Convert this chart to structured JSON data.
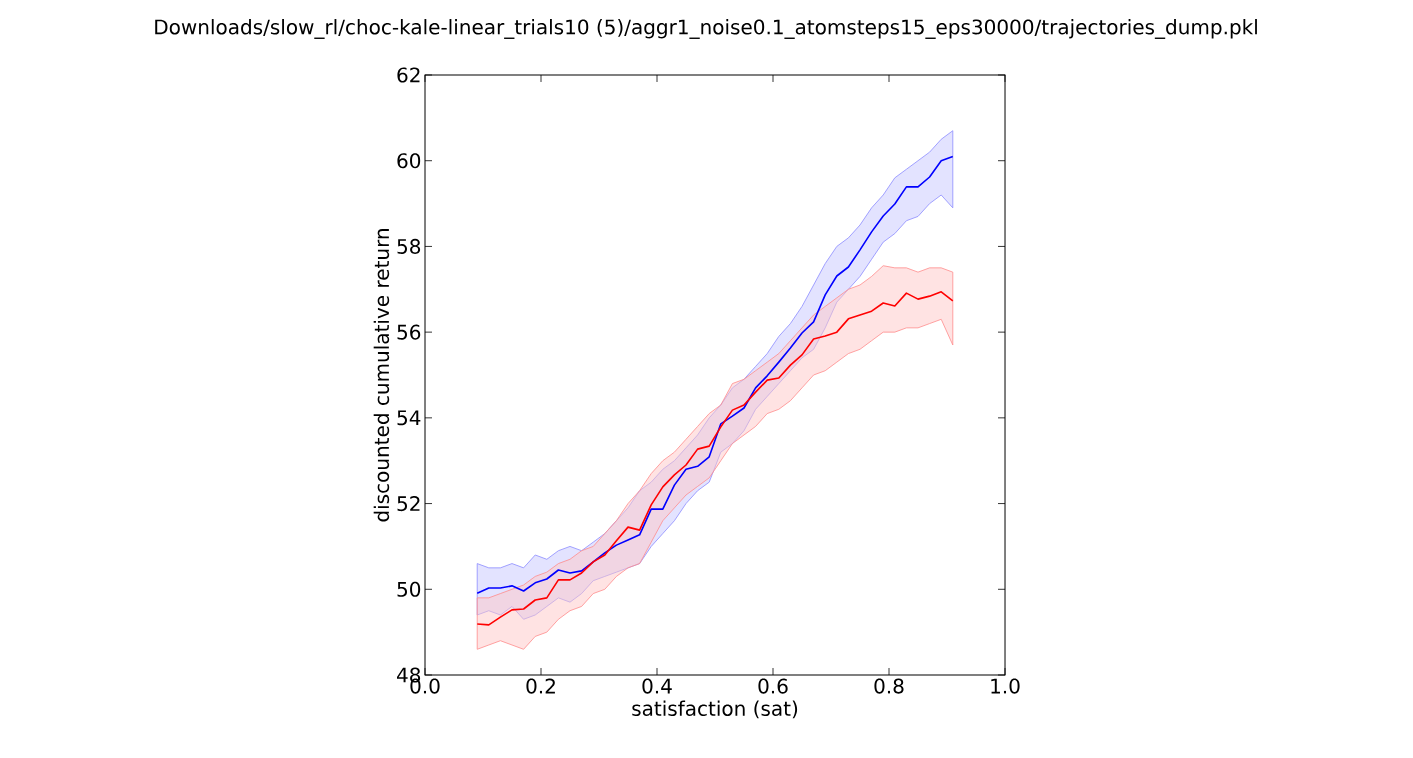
{
  "chart_data": {
    "type": "line",
    "title": "Downloads/slow_rl/choc-kale-linear_trials10 (5)/aggr1_noise0.1_atomsteps15_eps30000/trajectories_dump.pkl",
    "xlabel": "satisfaction (sat)",
    "ylabel": "discounted cumulative return",
    "x": [
      0.09,
      0.11,
      0.13,
      0.15,
      0.17,
      0.19,
      0.21,
      0.23,
      0.25,
      0.27,
      0.29,
      0.31,
      0.33,
      0.35,
      0.37,
      0.39,
      0.41,
      0.43,
      0.45,
      0.47,
      0.49,
      0.51,
      0.53,
      0.55,
      0.57,
      0.59,
      0.61,
      0.63,
      0.65,
      0.67,
      0.69,
      0.71,
      0.73,
      0.75,
      0.77,
      0.79,
      0.81,
      0.83,
      0.85,
      0.87,
      0.89,
      0.91
    ],
    "series": [
      {
        "color": "#0000ff",
        "values": [
          49.91,
          50.03,
          50.03,
          50.08,
          49.96,
          50.15,
          50.24,
          50.45,
          50.38,
          50.43,
          50.64,
          50.85,
          51.03,
          51.15,
          51.27,
          51.87,
          51.87,
          52.43,
          52.8,
          52.87,
          53.09,
          53.86,
          54.04,
          54.23,
          54.7,
          54.98,
          55.3,
          55.63,
          55.98,
          56.24,
          56.87,
          57.31,
          57.52,
          57.92,
          58.34,
          58.71,
          58.99,
          59.39,
          59.39,
          59.62,
          60.0,
          60.1
        ],
        "lower": [
          49.4,
          49.5,
          49.4,
          49.6,
          49.3,
          49.4,
          49.6,
          49.8,
          49.7,
          49.9,
          50.2,
          50.3,
          50.4,
          50.5,
          50.6,
          51.0,
          51.3,
          51.6,
          52.0,
          52.3,
          52.5,
          53.2,
          53.4,
          53.7,
          54.2,
          54.5,
          54.8,
          55.1,
          55.4,
          55.6,
          56.1,
          56.7,
          57.0,
          57.3,
          57.7,
          58.1,
          58.3,
          58.6,
          58.7,
          59.0,
          59.2,
          58.9
        ],
        "upper": [
          50.6,
          50.5,
          50.5,
          50.6,
          50.5,
          50.8,
          50.7,
          50.9,
          51.0,
          50.9,
          51.1,
          51.3,
          51.6,
          51.9,
          52.3,
          52.5,
          52.8,
          53.0,
          53.3,
          53.6,
          54.0,
          54.3,
          54.7,
          54.9,
          55.2,
          55.5,
          55.9,
          56.2,
          56.6,
          57.1,
          57.6,
          58.0,
          58.2,
          58.5,
          58.9,
          59.2,
          59.6,
          59.8,
          60.0,
          60.2,
          60.5,
          60.7
        ]
      },
      {
        "color": "#ff0000",
        "values": [
          49.19,
          49.17,
          49.35,
          49.52,
          49.54,
          49.75,
          49.8,
          50.22,
          50.22,
          50.38,
          50.64,
          50.8,
          51.13,
          51.45,
          51.38,
          51.97,
          52.39,
          52.67,
          52.9,
          53.27,
          53.34,
          53.79,
          54.18,
          54.3,
          54.6,
          54.88,
          54.93,
          55.23,
          55.47,
          55.84,
          55.91,
          56.0,
          56.31,
          56.4,
          56.49,
          56.68,
          56.61,
          56.91,
          56.77,
          56.84,
          56.94,
          56.73
        ],
        "lower": [
          48.6,
          48.7,
          48.8,
          48.7,
          48.6,
          48.9,
          49.0,
          49.3,
          49.5,
          49.6,
          49.9,
          50.0,
          50.3,
          50.5,
          50.6,
          51.1,
          51.6,
          51.9,
          52.2,
          52.4,
          52.6,
          53.0,
          53.4,
          53.6,
          53.8,
          54.1,
          54.2,
          54.4,
          54.7,
          55.0,
          55.1,
          55.3,
          55.5,
          55.6,
          55.8,
          56.0,
          56.0,
          56.1,
          56.1,
          56.2,
          56.3,
          55.7
        ],
        "upper": [
          49.8,
          49.8,
          49.9,
          50.0,
          50.1,
          50.3,
          50.4,
          50.6,
          50.7,
          50.9,
          51.0,
          51.3,
          51.6,
          52.0,
          52.3,
          52.7,
          53.0,
          53.2,
          53.5,
          53.8,
          54.1,
          54.3,
          54.8,
          54.9,
          55.1,
          55.3,
          55.5,
          55.8,
          56.1,
          56.4,
          56.6,
          56.8,
          57.0,
          57.1,
          57.3,
          57.55,
          57.5,
          57.5,
          57.4,
          57.5,
          57.5,
          57.4
        ]
      }
    ],
    "xlim": [
      0.0,
      1.0
    ],
    "xticks": [
      {
        "value": 0.0,
        "label": "0.0"
      },
      0.2,
      0.4,
      0.6,
      0.8,
      {
        "value": 1.0,
        "label": "1.0"
      }
    ],
    "ylim": [
      48,
      62
    ],
    "yticks": [
      48,
      50,
      52,
      54,
      56,
      58,
      60,
      62
    ]
  }
}
